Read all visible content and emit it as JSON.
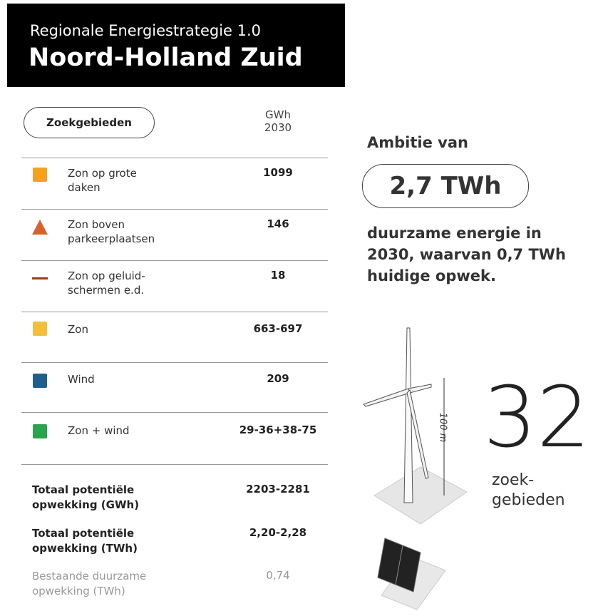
{
  "header": {
    "subtitle": "Regionale Energiestrategie 1.0",
    "title": "Noord-Holland Zuid"
  },
  "table": {
    "button": "Zoekgebieden",
    "unit": [
      "GWh",
      "2030"
    ],
    "rows": [
      {
        "label": "Zon op grote daken",
        "value": 1099
      },
      {
        "label": "Zon boven parkeerplaatsen",
        "value": 146
      },
      {
        "label": "Zon op geluid-schermen e.d.",
        "value": 18
      },
      {
        "label": "Zon",
        "value": "663-697"
      },
      {
        "label": "Wind",
        "value": 209
      },
      {
        "label": "Zon + wind",
        "value": "29-36+38-75"
      }
    ],
    "totals": [
      {
        "label": "Totaal potentiële opwekking (GWh)",
        "value": "2203-2281"
      },
      {
        "label": "Totaal potentiële opwekking (TWh)",
        "value": "2,20-2,28"
      },
      {
        "label": "Bestaande duurzame opwekking (TWh)",
        "value": "0,74"
      }
    ]
  },
  "ambition": {
    "intro": "Ambitie van",
    "amount": "2,7 TWh",
    "text": [
      "duurzame energie in",
      "2030, waarvan 0,7 TWh",
      "huidige opwek."
    ]
  },
  "turbine": {
    "height": "100 m",
    "count": "32",
    "label": [
      "zoek-",
      "gebieden"
    ]
  }
}
